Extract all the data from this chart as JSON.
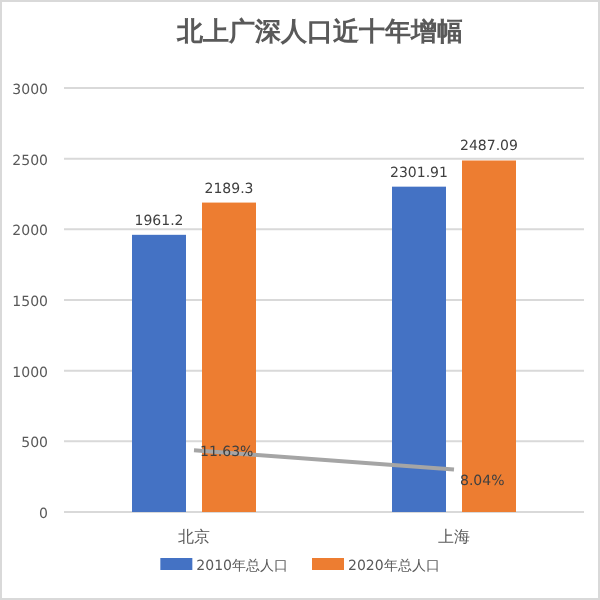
{
  "chart_data": {
    "type": "bar",
    "title": "北上广深人口近十年增幅",
    "categories": [
      "北京",
      "上海"
    ],
    "series": [
      {
        "name": "2010年总人口",
        "color": "#4472c4",
        "values": [
          1961.2,
          2301.91
        ],
        "value_labels": [
          "1961.2",
          "2301.91"
        ]
      },
      {
        "name": "2020年总人口",
        "color": "#ed7d31",
        "values": [
          2189.3,
          2487.09
        ],
        "value_labels": [
          "2189.3",
          "2487.09"
        ]
      },
      {
        "type": "line",
        "axis": "y2",
        "color": "#a5a5a5",
        "values": [
          11.63,
          8.04
        ],
        "value_labels": [
          "11.63%",
          "8.04%"
        ]
      }
    ],
    "ylim": [
      0,
      3000
    ],
    "yticks": [
      0,
      500,
      1000,
      1500,
      2000,
      2500,
      3000
    ],
    "y2lim": [
      0,
      80
    ],
    "grid": "y",
    "legend": "bottom"
  }
}
